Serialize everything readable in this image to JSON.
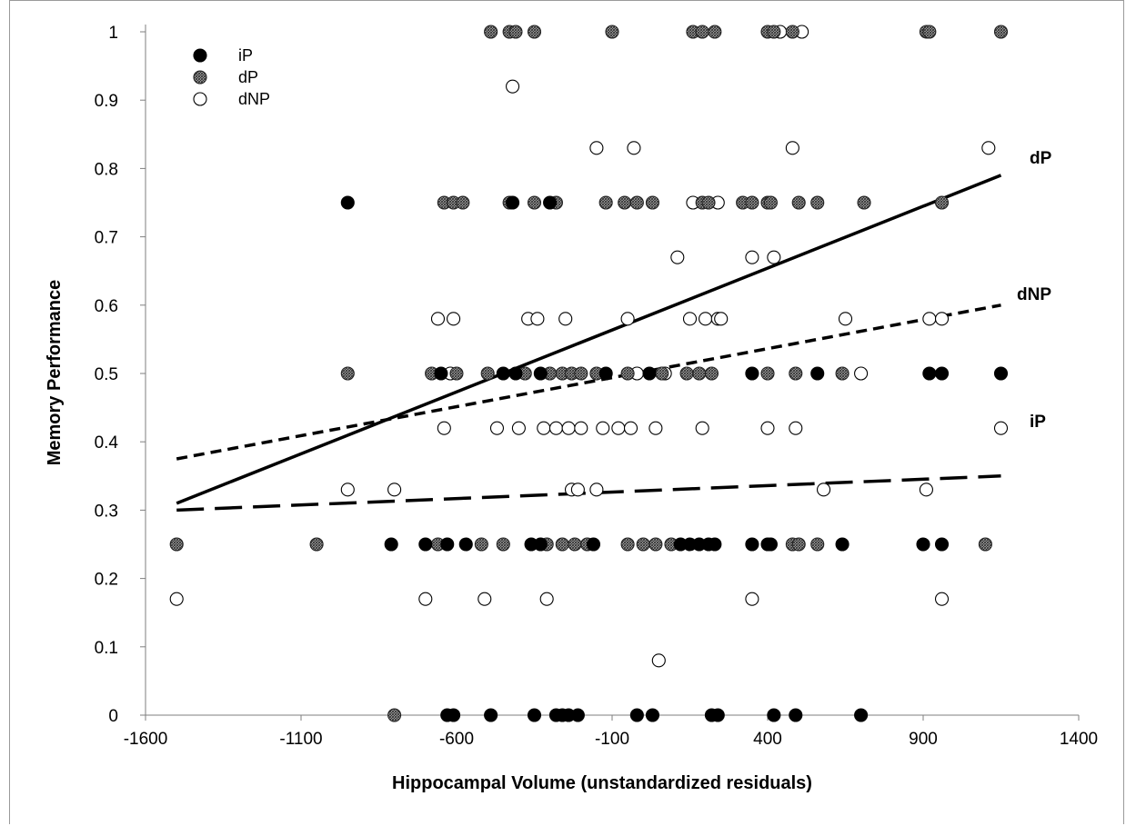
{
  "chart_data": {
    "type": "scatter",
    "title": "",
    "xlabel": "Hippocampal Volume (unstandardized residuals)",
    "ylabel": "Memory Performance",
    "xlim": [
      -1600,
      1400
    ],
    "ylim": [
      0,
      1
    ],
    "xticks": [
      -1600,
      -1100,
      -600,
      -100,
      400,
      900,
      1400
    ],
    "yticks": [
      0,
      0.1,
      0.2,
      0.3,
      0.4,
      0.5,
      0.6,
      0.7,
      0.8,
      0.9,
      1
    ],
    "xtick_labels": [
      "-1600",
      "-1100",
      "-600",
      "-100",
      "400",
      "900",
      "1400"
    ],
    "ytick_labels": [
      "0",
      "0.1",
      "0.2",
      "0.3",
      "0.4",
      "0.5",
      "0.6",
      "0.7",
      "0.8",
      "0.9",
      "1"
    ],
    "grid": false,
    "legend_position": "top-left",
    "series": [
      {
        "name": "iP",
        "marker": "filled",
        "color": "#000000",
        "trend_label": "iP",
        "trend_style": "long-dash",
        "trend": [
          [
            -1500,
            0.3
          ],
          [
            1150,
            0.35
          ]
        ],
        "points": [
          [
            -950,
            0.75
          ],
          [
            -420,
            0.75
          ],
          [
            -300,
            0.75
          ],
          [
            -650,
            0.5
          ],
          [
            -450,
            0.5
          ],
          [
            -410,
            0.5
          ],
          [
            -330,
            0.5
          ],
          [
            -120,
            0.5
          ],
          [
            20,
            0.5
          ],
          [
            350,
            0.5
          ],
          [
            560,
            0.5
          ],
          [
            920,
            0.5
          ],
          [
            960,
            0.5
          ],
          [
            1150,
            0.5
          ],
          [
            -810,
            0.25
          ],
          [
            -700,
            0.25
          ],
          [
            -630,
            0.25
          ],
          [
            -570,
            0.25
          ],
          [
            -360,
            0.25
          ],
          [
            -330,
            0.25
          ],
          [
            -160,
            0.25
          ],
          [
            120,
            0.25
          ],
          [
            150,
            0.25
          ],
          [
            180,
            0.25
          ],
          [
            210,
            0.25
          ],
          [
            230,
            0.25
          ],
          [
            350,
            0.25
          ],
          [
            400,
            0.25
          ],
          [
            410,
            0.25
          ],
          [
            640,
            0.25
          ],
          [
            900,
            0.25
          ],
          [
            960,
            0.25
          ],
          [
            -630,
            0
          ],
          [
            -610,
            0
          ],
          [
            -490,
            0
          ],
          [
            -350,
            0
          ],
          [
            -280,
            0
          ],
          [
            -260,
            0
          ],
          [
            -240,
            0
          ],
          [
            -210,
            0
          ],
          [
            -20,
            0
          ],
          [
            30,
            0
          ],
          [
            220,
            0
          ],
          [
            240,
            0
          ],
          [
            420,
            0
          ],
          [
            490,
            0
          ],
          [
            700,
            0
          ]
        ]
      },
      {
        "name": "dP",
        "marker": "hatched",
        "color": "#8a8a8a",
        "trend_label": "dP",
        "trend_style": "solid",
        "trend": [
          [
            -1500,
            0.31
          ],
          [
            1150,
            0.79
          ]
        ],
        "points": [
          [
            -490,
            1
          ],
          [
            -430,
            1
          ],
          [
            -410,
            1
          ],
          [
            -350,
            1
          ],
          [
            -100,
            1
          ],
          [
            160,
            1
          ],
          [
            190,
            1
          ],
          [
            230,
            1
          ],
          [
            400,
            1
          ],
          [
            420,
            1
          ],
          [
            480,
            1
          ],
          [
            910,
            1
          ],
          [
            920,
            1
          ],
          [
            1150,
            1
          ],
          [
            -640,
            0.75
          ],
          [
            -610,
            0.75
          ],
          [
            -580,
            0.75
          ],
          [
            -430,
            0.75
          ],
          [
            -350,
            0.75
          ],
          [
            -280,
            0.75
          ],
          [
            -120,
            0.75
          ],
          [
            -60,
            0.75
          ],
          [
            -20,
            0.75
          ],
          [
            30,
            0.75
          ],
          [
            190,
            0.75
          ],
          [
            210,
            0.75
          ],
          [
            320,
            0.75
          ],
          [
            350,
            0.75
          ],
          [
            400,
            0.75
          ],
          [
            410,
            0.75
          ],
          [
            500,
            0.75
          ],
          [
            560,
            0.75
          ],
          [
            710,
            0.75
          ],
          [
            960,
            0.75
          ],
          [
            -950,
            0.5
          ],
          [
            -680,
            0.5
          ],
          [
            -600,
            0.5
          ],
          [
            -500,
            0.5
          ],
          [
            -380,
            0.5
          ],
          [
            -300,
            0.5
          ],
          [
            -260,
            0.5
          ],
          [
            -230,
            0.5
          ],
          [
            -200,
            0.5
          ],
          [
            -150,
            0.5
          ],
          [
            -50,
            0.5
          ],
          [
            60,
            0.5
          ],
          [
            140,
            0.5
          ],
          [
            180,
            0.5
          ],
          [
            220,
            0.5
          ],
          [
            400,
            0.5
          ],
          [
            490,
            0.5
          ],
          [
            640,
            0.5
          ],
          [
            -1500,
            0.25
          ],
          [
            -1050,
            0.25
          ],
          [
            -660,
            0.25
          ],
          [
            -520,
            0.25
          ],
          [
            -450,
            0.25
          ],
          [
            -310,
            0.25
          ],
          [
            -260,
            0.25
          ],
          [
            -220,
            0.25
          ],
          [
            -180,
            0.25
          ],
          [
            -50,
            0.25
          ],
          [
            0,
            0.25
          ],
          [
            40,
            0.25
          ],
          [
            90,
            0.25
          ],
          [
            480,
            0.25
          ],
          [
            500,
            0.25
          ],
          [
            560,
            0.25
          ],
          [
            1100,
            0.25
          ],
          [
            -800,
            0
          ]
        ]
      },
      {
        "name": "dNP",
        "marker": "open",
        "color": "#ffffff",
        "trend_label": "dNP",
        "trend_style": "short-dash",
        "trend": [
          [
            -1500,
            0.375
          ],
          [
            1150,
            0.6
          ]
        ],
        "points": [
          [
            -420,
            0.92
          ],
          [
            440,
            1
          ],
          [
            510,
            1
          ],
          [
            -150,
            0.83
          ],
          [
            -30,
            0.83
          ],
          [
            480,
            0.83
          ],
          [
            1110,
            0.83
          ],
          [
            160,
            0.75
          ],
          [
            240,
            0.75
          ],
          [
            110,
            0.67
          ],
          [
            350,
            0.67
          ],
          [
            420,
            0.67
          ],
          [
            -660,
            0.58
          ],
          [
            -610,
            0.58
          ],
          [
            -370,
            0.58
          ],
          [
            -340,
            0.58
          ],
          [
            -250,
            0.58
          ],
          [
            -50,
            0.58
          ],
          [
            150,
            0.58
          ],
          [
            200,
            0.58
          ],
          [
            240,
            0.58
          ],
          [
            250,
            0.58
          ],
          [
            650,
            0.58
          ],
          [
            920,
            0.58
          ],
          [
            960,
            0.58
          ],
          [
            -620,
            0.5
          ],
          [
            -20,
            0.5
          ],
          [
            70,
            0.5
          ],
          [
            700,
            0.5
          ],
          [
            -640,
            0.42
          ],
          [
            -470,
            0.42
          ],
          [
            -400,
            0.42
          ],
          [
            -320,
            0.42
          ],
          [
            -280,
            0.42
          ],
          [
            -240,
            0.42
          ],
          [
            -200,
            0.42
          ],
          [
            -130,
            0.42
          ],
          [
            -80,
            0.42
          ],
          [
            -40,
            0.42
          ],
          [
            40,
            0.42
          ],
          [
            190,
            0.42
          ],
          [
            400,
            0.42
          ],
          [
            490,
            0.42
          ],
          [
            1150,
            0.42
          ],
          [
            -950,
            0.33
          ],
          [
            -800,
            0.33
          ],
          [
            -230,
            0.33
          ],
          [
            -210,
            0.33
          ],
          [
            -150,
            0.33
          ],
          [
            580,
            0.33
          ],
          [
            910,
            0.33
          ],
          [
            -700,
            0.17
          ],
          [
            -510,
            0.17
          ],
          [
            -310,
            0.17
          ],
          [
            350,
            0.17
          ],
          [
            960,
            0.17
          ],
          [
            -1500,
            0.17
          ],
          [
            50,
            0.08
          ]
        ]
      }
    ]
  }
}
